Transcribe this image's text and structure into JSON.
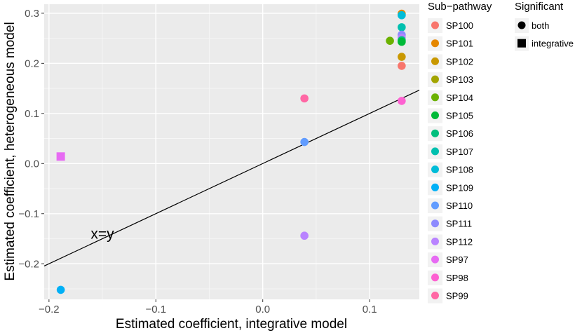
{
  "chart_data": {
    "type": "scatter",
    "xlabel": "Estimated coefficient, integrative model",
    "ylabel": "Estimated coefficient, heterogeneous model",
    "xlim": [
      -0.2045,
      0.1465
    ],
    "ylim": [
      -0.271,
      0.318
    ],
    "x_ticks": [
      -0.2,
      -0.1,
      0.0,
      0.1
    ],
    "x_tick_labels": [
      "−0.2",
      "−0.1",
      "0.0",
      "0.1"
    ],
    "y_ticks": [
      -0.2,
      -0.1,
      0.0,
      0.1,
      0.2,
      0.3
    ],
    "y_tick_labels": [
      "−0.2",
      "−0.1",
      "0.0",
      "0.1",
      "0.2",
      "0.3"
    ],
    "grid": true,
    "reference_line": {
      "slope": 1,
      "intercept": 0,
      "label": "x=y",
      "label_x": -0.15,
      "label_y": -0.14
    },
    "legend_position": "right",
    "color_legend": {
      "title": "Sub−pathway",
      "entries": [
        {
          "label": "SP100",
          "color": "#F8766D"
        },
        {
          "label": "SP101",
          "color": "#E58700"
        },
        {
          "label": "SP102",
          "color": "#C99800"
        },
        {
          "label": "SP103",
          "color": "#A3A500"
        },
        {
          "label": "SP104",
          "color": "#6BB100"
        },
        {
          "label": "SP105",
          "color": "#00BA38"
        },
        {
          "label": "SP106",
          "color": "#00BF7D"
        },
        {
          "label": "SP107",
          "color": "#00C0AF"
        },
        {
          "label": "SP108",
          "color": "#00BCD8"
        },
        {
          "label": "SP109",
          "color": "#00B0F6"
        },
        {
          "label": "SP110",
          "color": "#619CFF"
        },
        {
          "label": "SP111",
          "color": "#8D8AFE"
        },
        {
          "label": "SP112",
          "color": "#B983FF"
        },
        {
          "label": "SP97",
          "color": "#E76BF3"
        },
        {
          "label": "SP98",
          "color": "#FD61D1"
        },
        {
          "label": "SP99",
          "color": "#FF67A4"
        }
      ]
    },
    "shape_legend": {
      "title": "Significant",
      "entries": [
        {
          "label": "both",
          "shape": "circle"
        },
        {
          "label": "integrative",
          "shape": "square"
        }
      ]
    },
    "points": [
      {
        "x": -0.189,
        "y": 0.014,
        "group": "SP97",
        "shape": "square"
      },
      {
        "x": -0.189,
        "y": -0.252,
        "group": "SP109",
        "shape": "circle"
      },
      {
        "x": 0.039,
        "y": 0.13,
        "group": "SP99",
        "shape": "circle"
      },
      {
        "x": 0.039,
        "y": 0.043,
        "group": "SP110",
        "shape": "circle"
      },
      {
        "x": 0.039,
        "y": -0.144,
        "group": "SP112",
        "shape": "circle"
      },
      {
        "x": 0.119,
        "y": 0.245,
        "group": "SP104",
        "shape": "circle"
      },
      {
        "x": 0.13,
        "y": 0.299,
        "group": "SP101",
        "shape": "circle"
      },
      {
        "x": 0.13,
        "y": 0.296,
        "group": "SP108",
        "shape": "circle"
      },
      {
        "x": 0.13,
        "y": 0.272,
        "group": "SP107",
        "shape": "circle"
      },
      {
        "x": 0.13,
        "y": 0.257,
        "group": "SP111",
        "shape": "circle"
      },
      {
        "x": 0.13,
        "y": 0.251,
        "group": "SP112",
        "shape": "circle"
      },
      {
        "x": 0.13,
        "y": 0.246,
        "group": "SP106",
        "shape": "circle"
      },
      {
        "x": 0.13,
        "y": 0.243,
        "group": "SP105",
        "shape": "circle"
      },
      {
        "x": 0.13,
        "y": 0.213,
        "group": "SP102",
        "shape": "circle"
      },
      {
        "x": 0.13,
        "y": 0.195,
        "group": "SP100",
        "shape": "circle"
      },
      {
        "x": 0.13,
        "y": 0.125,
        "group": "SP98",
        "shape": "circle"
      }
    ]
  }
}
